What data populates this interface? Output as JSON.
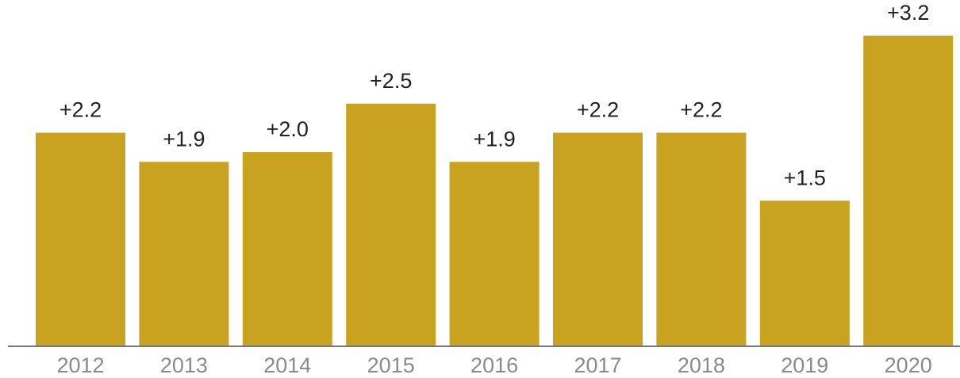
{
  "chart_data": {
    "type": "bar",
    "categories": [
      "2012",
      "2013",
      "2014",
      "2015",
      "2016",
      "2017",
      "2018",
      "2019",
      "2020"
    ],
    "values": [
      2.2,
      1.9,
      2.0,
      2.5,
      1.9,
      2.2,
      2.2,
      1.5,
      3.2
    ],
    "value_labels": [
      "+2.2",
      "+1.9",
      "+2.0",
      "+2.5",
      "+1.9",
      "+2.2",
      "+2.2",
      "+1.5",
      "+3.2"
    ],
    "color": "#c9a21f"
  }
}
